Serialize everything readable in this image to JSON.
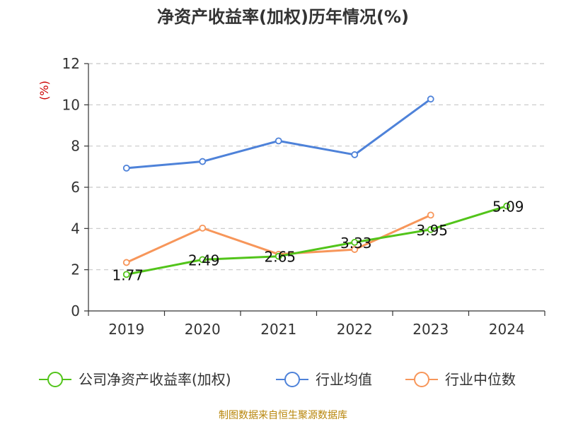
{
  "chart_data": {
    "type": "line",
    "title": "净资产收益率(加权)历年情况(%)",
    "ylabel": "(%)",
    "xlabel": "",
    "categories": [
      "2019",
      "2020",
      "2021",
      "2022",
      "2023",
      "2024"
    ],
    "ylim": [
      0,
      12
    ],
    "yticks": [
      0,
      2,
      4,
      6,
      8,
      10,
      12
    ],
    "grid": true,
    "legend_position": "bottom",
    "series": [
      {
        "name": "公司净资产收益率(加权)",
        "color": "#52c41a",
        "values": [
          1.77,
          2.49,
          2.65,
          3.33,
          3.95,
          5.09
        ],
        "show_labels": true
      },
      {
        "name": "行业均值",
        "color": "#4e82d9",
        "values": [
          6.93,
          7.25,
          8.25,
          7.58,
          10.28,
          null
        ],
        "show_labels": false
      },
      {
        "name": "行业中位数",
        "color": "#f7965a",
        "values": [
          2.35,
          4.02,
          2.75,
          2.98,
          4.65,
          null
        ],
        "show_labels": false
      }
    ],
    "source": "制图数据来自恒生聚源数据库"
  }
}
